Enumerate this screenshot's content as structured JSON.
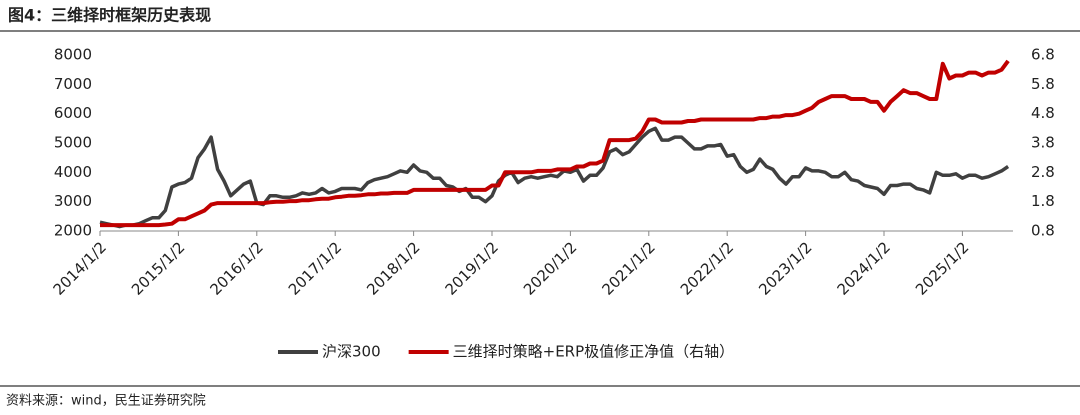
{
  "chart_data": {
    "type": "line",
    "title": "图4：三维择时框架历史表现",
    "source": "资料来源：wind，民生证券研究院",
    "categories": [
      "2014/1/2",
      null,
      null,
      null,
      null,
      null,
      null,
      null,
      null,
      null,
      null,
      null,
      "2015/1/2",
      null,
      null,
      null,
      null,
      null,
      null,
      null,
      null,
      null,
      null,
      null,
      "2016/1/2",
      null,
      null,
      null,
      null,
      null,
      null,
      null,
      null,
      null,
      null,
      null,
      "2017/1/2",
      null,
      null,
      null,
      null,
      null,
      null,
      null,
      null,
      null,
      null,
      null,
      "2018/1/2",
      null,
      null,
      null,
      null,
      null,
      null,
      null,
      null,
      null,
      null,
      null,
      "2019/1/2",
      null,
      null,
      null,
      null,
      null,
      null,
      null,
      null,
      null,
      null,
      null,
      "2020/1/2",
      null,
      null,
      null,
      null,
      null,
      null,
      null,
      null,
      null,
      null,
      null,
      "2021/1/2",
      null,
      null,
      null,
      null,
      null,
      null,
      null,
      null,
      null,
      null,
      null,
      "2022/1/2",
      null,
      null,
      null,
      null,
      null,
      null,
      null,
      null,
      null,
      null,
      null,
      "2023/1/2",
      null,
      null,
      null,
      null,
      null,
      null,
      null,
      null,
      null,
      null,
      null,
      "2024/1/2",
      null,
      null,
      null,
      null,
      null,
      null,
      null,
      null,
      null,
      null,
      null,
      "2025/1/2",
      null,
      null,
      null,
      null,
      null,
      null,
      null
    ],
    "series": [
      {
        "name": "沪深300",
        "color": "#404040",
        "values": [
          2300,
          2250,
          2200,
          2150,
          2200,
          2200,
          2250,
          2350,
          2450,
          2450,
          2700,
          3500,
          3600,
          3650,
          3800,
          4500,
          4800,
          5200,
          4100,
          3700,
          3200,
          3400,
          3600,
          3700,
          2950,
          2900,
          3200,
          3200,
          3150,
          3150,
          3200,
          3300,
          3250,
          3300,
          3450,
          3300,
          3350,
          3450,
          3450,
          3450,
          3400,
          3650,
          3750,
          3800,
          3850,
          3950,
          4050,
          4000,
          4250,
          4050,
          4000,
          3800,
          3800,
          3550,
          3500,
          3350,
          3450,
          3150,
          3150,
          3000,
          3200,
          3700,
          3900,
          4000,
          3650,
          3800,
          3850,
          3800,
          3850,
          3900,
          3850,
          4050,
          4000,
          4100,
          3700,
          3900,
          3900,
          4150,
          4700,
          4800,
          4600,
          4700,
          4950,
          5200,
          5400,
          5500,
          5100,
          5100,
          5200,
          5200,
          5000,
          4800,
          4800,
          4900,
          4900,
          4950,
          4550,
          4600,
          4200,
          4000,
          4100,
          4450,
          4200,
          4100,
          3800,
          3600,
          3850,
          3850,
          4150,
          4050,
          4050,
          4000,
          3850,
          3850,
          4000,
          3750,
          3700,
          3550,
          3500,
          3450,
          3250,
          3550,
          3550,
          3600,
          3600,
          3450,
          3400,
          3300,
          4000,
          3900,
          3900,
          3950,
          3800,
          3900,
          3900,
          3800,
          3850,
          3950,
          4050,
          4200
        ]
      },
      {
        "name": "三维择时策略+ERP极值修正净值（右轴）",
        "color": "#c00000",
        "axis": "y2",
        "values": [
          1.0,
          1.0,
          1.0,
          1.0,
          1.0,
          1.0,
          1.0,
          1.0,
          1.0,
          1.0,
          1.02,
          1.05,
          1.2,
          1.2,
          1.3,
          1.4,
          1.5,
          1.7,
          1.75,
          1.75,
          1.75,
          1.75,
          1.75,
          1.75,
          1.75,
          1.75,
          1.78,
          1.8,
          1.8,
          1.82,
          1.82,
          1.85,
          1.85,
          1.88,
          1.9,
          1.9,
          1.95,
          1.97,
          2.0,
          2.0,
          2.02,
          2.05,
          2.05,
          2.08,
          2.08,
          2.1,
          2.1,
          2.1,
          2.2,
          2.2,
          2.2,
          2.2,
          2.2,
          2.2,
          2.2,
          2.2,
          2.2,
          2.2,
          2.2,
          2.2,
          2.35,
          2.35,
          2.8,
          2.8,
          2.8,
          2.8,
          2.8,
          2.85,
          2.85,
          2.85,
          2.9,
          2.9,
          2.9,
          3.0,
          3.0,
          3.1,
          3.1,
          3.2,
          3.9,
          3.9,
          3.9,
          3.9,
          3.95,
          4.2,
          4.6,
          4.6,
          4.5,
          4.5,
          4.5,
          4.5,
          4.55,
          4.55,
          4.6,
          4.6,
          4.6,
          4.6,
          4.6,
          4.6,
          4.6,
          4.6,
          4.6,
          4.65,
          4.65,
          4.7,
          4.7,
          4.75,
          4.75,
          4.8,
          4.9,
          5.0,
          5.2,
          5.3,
          5.4,
          5.4,
          5.4,
          5.3,
          5.3,
          5.3,
          5.2,
          5.2,
          4.9,
          5.2,
          5.4,
          5.6,
          5.5,
          5.5,
          5.4,
          5.3,
          5.3,
          6.5,
          6.0,
          6.1,
          6.1,
          6.2,
          6.2,
          6.1,
          6.2,
          6.2,
          6.3,
          6.6
        ]
      }
    ],
    "ylim": [
      2000,
      8000
    ],
    "yticks": [
      2000,
      3000,
      4000,
      5000,
      6000,
      7000,
      8000
    ],
    "y2lim": [
      0.8,
      6.8
    ],
    "y2ticks": [
      0.8,
      1.8,
      2.8,
      3.8,
      4.8,
      5.8,
      6.8
    ],
    "grid": false,
    "legend": "bottom"
  }
}
